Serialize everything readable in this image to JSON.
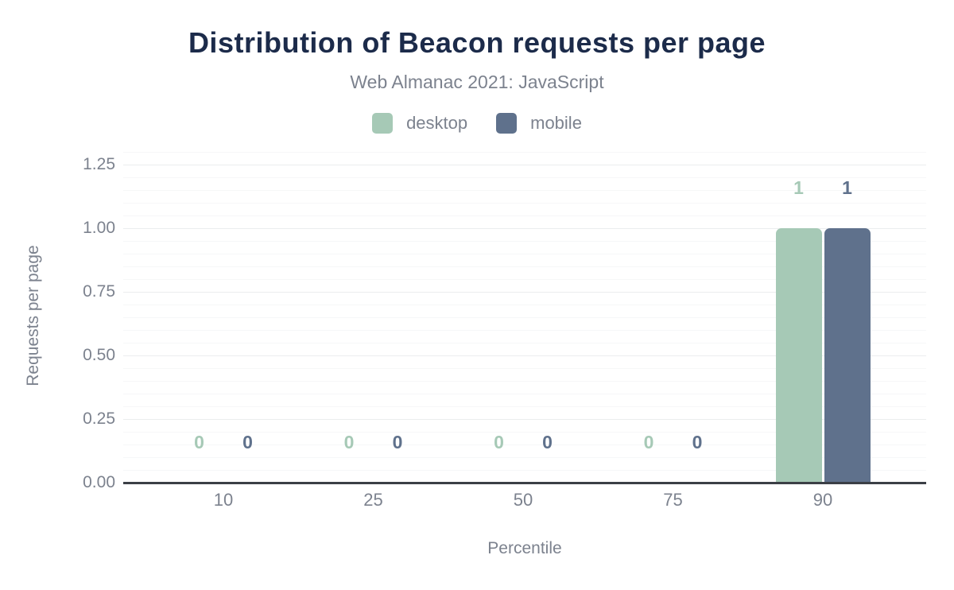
{
  "chart_data": {
    "type": "bar",
    "title": "Distribution of Beacon requests per page",
    "subtitle": "Web Almanac 2021: JavaScript",
    "xlabel": "Percentile",
    "ylabel": "Requests per page",
    "categories": [
      "10",
      "25",
      "50",
      "75",
      "90"
    ],
    "series": [
      {
        "name": "desktop",
        "color": "#a6c9b6",
        "values": [
          0,
          0,
          0,
          0,
          1
        ]
      },
      {
        "name": "mobile",
        "color": "#5f718c",
        "values": [
          0,
          0,
          0,
          0,
          1
        ]
      }
    ],
    "annotations": {
      "desktop": [
        "0",
        "0",
        "0",
        "0",
        "1"
      ],
      "mobile": [
        "0",
        "0",
        "0",
        "0",
        "1"
      ]
    },
    "ylim": [
      0,
      1.3125
    ],
    "yticks": [
      0,
      0.25,
      0.5,
      0.75,
      1,
      1.25
    ],
    "ytick_labels": [
      "0.00",
      "0.25",
      "0.50",
      "0.75",
      "1.00",
      "1.25"
    ],
    "minor_tick_step": 0.05,
    "grid": true,
    "legend_position": "top",
    "colors": {
      "title": "#1c2b4a",
      "text": "#7c828e",
      "axis_line": "#3b3f46",
      "grid_major": "#ebedee",
      "grid_minor": "#f6f7f8",
      "background": "#ffffff"
    }
  }
}
